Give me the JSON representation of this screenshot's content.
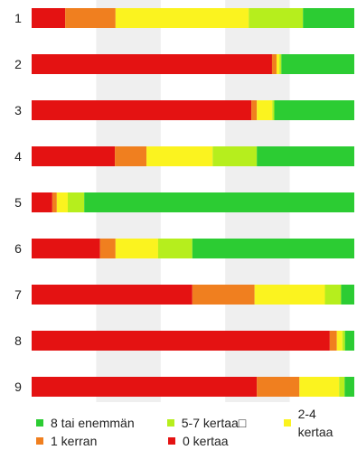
{
  "chart_data": {
    "type": "bar",
    "orientation": "horizontal",
    "stacked": true,
    "normalized": true,
    "categories": [
      "1",
      "2",
      "3",
      "4",
      "5",
      "6",
      "7",
      "8",
      "9"
    ],
    "series": [
      {
        "name": "0 kertaa",
        "color": "#e41212",
        "values": [
          10.4,
          74.5,
          68.1,
          25.8,
          6.4,
          21.2,
          49.8,
          92.4,
          69.8
        ]
      },
      {
        "name": "1 kerran",
        "color": "#f07f1f",
        "values": [
          15.6,
          1.4,
          1.7,
          9.8,
          1.4,
          4.8,
          19.3,
          2.2,
          13.2
        ]
      },
      {
        "name": "2-4 kertaa",
        "color": "#fbf31f",
        "values": [
          41.3,
          0.9,
          4.8,
          20.5,
          3.4,
          13.2,
          21.8,
          1.7,
          12.3
        ]
      },
      {
        "name": "5-7 kertaa",
        "color": "#b6ee1d",
        "values": [
          16.8,
          0.6,
          0.6,
          13.7,
          5.1,
          10.6,
          5.0,
          0.8,
          1.7
        ]
      },
      {
        "name": "8 tai enemmän",
        "color": "#2ccc33",
        "values": [
          15.9,
          22.6,
          24.8,
          30.2,
          83.7,
          50.2,
          4.1,
          2.9,
          3.0
        ]
      }
    ],
    "xlim": [
      0,
      100
    ],
    "grid": "alternating vertical bands",
    "legend_position": "bottom"
  },
  "legend": {
    "row1": [
      {
        "label": "8 tai enemmän",
        "color": "#2ccc33"
      },
      {
        "label": "5-7 kertaa□",
        "color": "#b6ee1d"
      },
      {
        "label": "2-4 kertaa",
        "color": "#fbf31f"
      }
    ],
    "row2": [
      {
        "label": "1 kerran",
        "color": "#f07f1f"
      },
      {
        "label": "0 kertaa",
        "color": "#e41212"
      }
    ]
  }
}
